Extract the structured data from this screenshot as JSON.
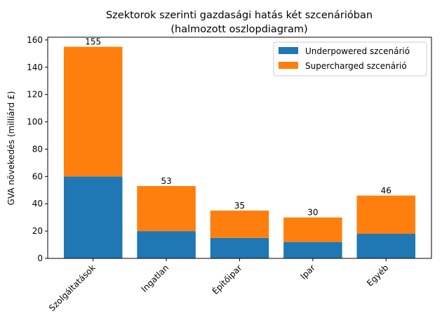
{
  "chart_data": {
    "type": "bar",
    "stacked": true,
    "title": "Szektorok szerinti gazdasági hatás két szcenárióban",
    "subtitle": "(halmozott oszlopdiagram)",
    "xlabel": "",
    "ylabel": "GVA növekedés (milliárd £)",
    "ylim": [
      0,
      162
    ],
    "yticks": [
      0,
      20,
      40,
      60,
      80,
      100,
      120,
      140,
      160
    ],
    "categories": [
      "Szolgáltatások",
      "Ingatlan",
      "Építőipar",
      "Ipar",
      "Egyéb"
    ],
    "series": [
      {
        "name": "Underpowered szcenárió",
        "color": "#1f77b4",
        "values": [
          60,
          20,
          15,
          12,
          18
        ]
      },
      {
        "name": "Supercharged szcenárió",
        "color": "#ff7f0e",
        "values": [
          95,
          33,
          20,
          18,
          28
        ]
      }
    ],
    "totals": [
      155,
      53,
      35,
      30,
      46
    ],
    "legend_position": "top-right",
    "grid": false
  }
}
